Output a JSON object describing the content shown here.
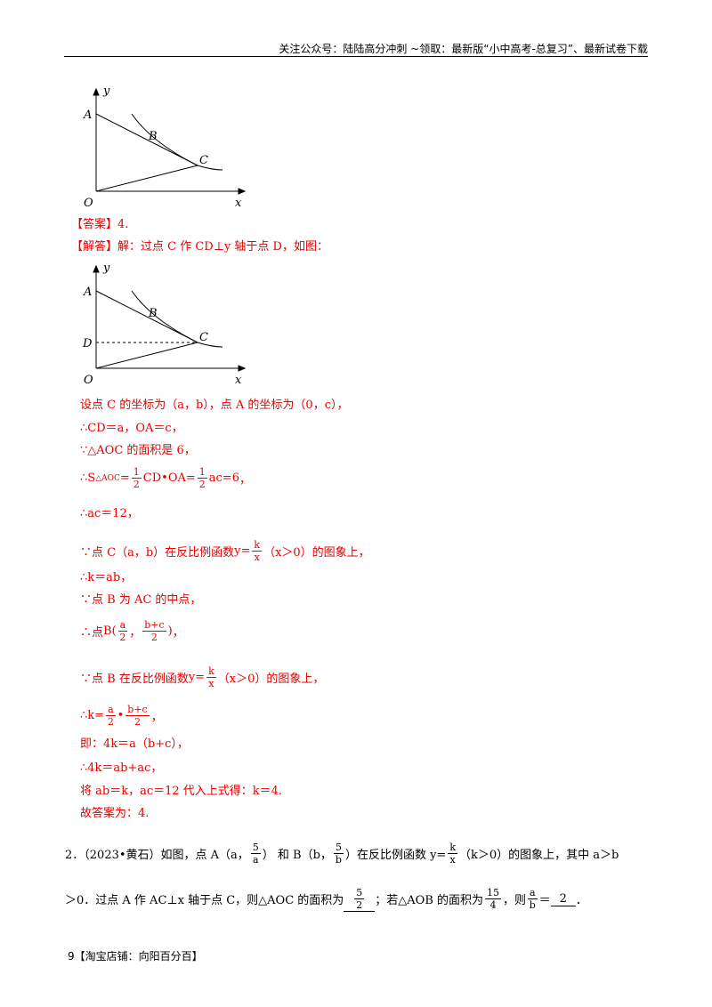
{
  "header": "关注公众号：陆陆高分冲刺 ~领取：最新版“小中高考-总复习”、最新试卷下载",
  "figure1": {
    "y": "y",
    "A": "A",
    "B": "B",
    "C": "C",
    "O": "O",
    "x": "x"
  },
  "answer": [
    [
      "【答案】4."
    ]
  ],
  "solution_intro": [
    [
      "【解答】解：过点 C 作 CD⊥y 轴于点 D，如图："
    ]
  ],
  "figure2": {
    "y": "y",
    "A": "A",
    "B": "B",
    "C": "C",
    "D": "D",
    "O": "O",
    "x": "x"
  },
  "solution": [
    [
      "设点 C 的坐标为（a，b），点 A 的坐标为（0，c），"
    ],
    [
      "∴CD＝a，OA＝c，"
    ],
    [
      "∵△AOC 的面积是 6，"
    ],
    [
      "∴ ",
      {
        "text": "S",
        "sub": "△AOC"
      },
      "=",
      {
        "num": "1",
        "den": "2"
      },
      "CD•OA=",
      {
        "num": "1",
        "den": "2"
      },
      "ac=6",
      "，"
    ],
    [
      "∴ac＝12，"
    ],
    [
      "∵点 C（a，b）在反比例函数 ",
      "y=",
      {
        "num": "k",
        "den": "x"
      },
      "（x＞0）的图象上，"
    ],
    [
      "∴k＝ab，"
    ],
    [
      "∵点 B 为 AC 的中点，"
    ],
    [
      "∴点 ",
      "B(",
      {
        "num": "a",
        "den": "2"
      },
      "，",
      {
        "num": "b+c",
        "den": "2"
      },
      ")",
      "，"
    ],
    [
      "∵点 B 在反比例函数 ",
      "y=",
      {
        "num": "k",
        "den": "x"
      },
      "（x＞0）的图象上，"
    ],
    [
      "∴ ",
      "k=",
      {
        "num": "a",
        "den": "2"
      },
      "•",
      {
        "num": "b+c",
        "den": "2"
      },
      "，"
    ],
    [
      "即：4k＝a（b+c），"
    ],
    [
      "∴4k＝ab+ac，"
    ],
    [
      "将 ab＝k，ac＝12 代入上式得：k＝4."
    ],
    [
      "故答案为：4."
    ]
  ],
  "problem2": [
    [
      "2．（2023•黄石）如图，点 A（a，",
      {
        "num": "5",
        "den": "a"
      },
      "） 和 B（b，",
      {
        "num": "5",
        "den": "b"
      },
      "）在反比例函数 y=",
      {
        "num": "k",
        "den": "x"
      },
      "（k＞0）的图象上，其中 a＞b"
    ],
    [
      "＞0．过点 A 作 AC⊥x 轴于点 C，则△AOC 的面积为 ",
      {
        "num": "5",
        "den": "2",
        "underline": true
      },
      "；若△AOB 的面积为 ",
      {
        "num": "15",
        "den": "4"
      },
      "，则 ",
      {
        "num": "a",
        "den": "b"
      },
      "＝ ",
      {
        "text": "2",
        "underline": true
      },
      "．"
    ]
  ],
  "footer": "9【淘宝店铺：向阳百分百】"
}
